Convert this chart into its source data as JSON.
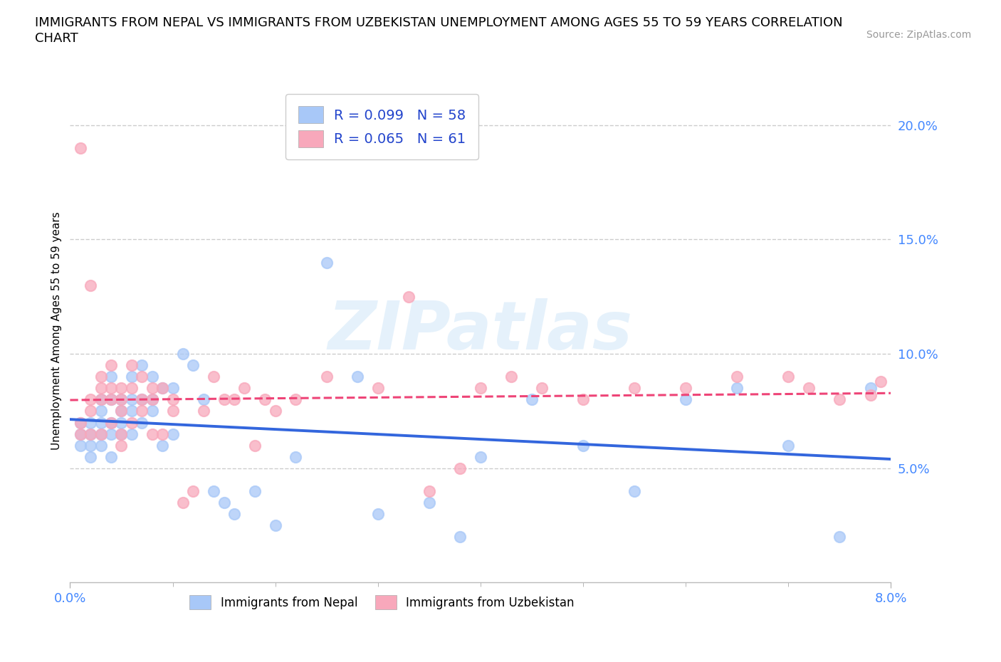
{
  "title_line1": "IMMIGRANTS FROM NEPAL VS IMMIGRANTS FROM UZBEKISTAN UNEMPLOYMENT AMONG AGES 55 TO 59 YEARS CORRELATION",
  "title_line2": "CHART",
  "source": "Source: ZipAtlas.com",
  "ylabel": "Unemployment Among Ages 55 to 59 years",
  "xlim": [
    0.0,
    0.08
  ],
  "ylim": [
    0.0,
    0.22
  ],
  "xtick_positions": [
    0.0,
    0.08
  ],
  "xticklabels": [
    "0.0%",
    "8.0%"
  ],
  "xtick_minor_positions": [
    0.01,
    0.02,
    0.03,
    0.04,
    0.05,
    0.06,
    0.07
  ],
  "yticks": [
    0.05,
    0.1,
    0.15,
    0.2
  ],
  "yticklabels": [
    "5.0%",
    "10.0%",
    "15.0%",
    "20.0%"
  ],
  "nepal_scatter_color": "#a8c8f8",
  "uzbekistan_scatter_color": "#f8a8bb",
  "nepal_line_color": "#3366dd",
  "uzbekistan_line_color": "#ee4477",
  "R_nepal": 0.099,
  "N_nepal": 58,
  "R_uzbekistan": 0.065,
  "N_uzbekistan": 61,
  "nepal_x": [
    0.001,
    0.001,
    0.001,
    0.002,
    0.002,
    0.002,
    0.002,
    0.003,
    0.003,
    0.003,
    0.003,
    0.003,
    0.004,
    0.004,
    0.004,
    0.004,
    0.004,
    0.005,
    0.005,
    0.005,
    0.005,
    0.006,
    0.006,
    0.006,
    0.006,
    0.007,
    0.007,
    0.007,
    0.008,
    0.008,
    0.008,
    0.009,
    0.009,
    0.01,
    0.01,
    0.011,
    0.012,
    0.013,
    0.014,
    0.015,
    0.016,
    0.018,
    0.02,
    0.022,
    0.025,
    0.028,
    0.03,
    0.035,
    0.038,
    0.04,
    0.045,
    0.05,
    0.055,
    0.06,
    0.065,
    0.07,
    0.075,
    0.078
  ],
  "nepal_y": [
    0.065,
    0.06,
    0.07,
    0.055,
    0.06,
    0.065,
    0.07,
    0.06,
    0.065,
    0.07,
    0.08,
    0.075,
    0.055,
    0.065,
    0.07,
    0.08,
    0.09,
    0.065,
    0.07,
    0.075,
    0.08,
    0.065,
    0.075,
    0.08,
    0.09,
    0.07,
    0.08,
    0.095,
    0.075,
    0.08,
    0.09,
    0.06,
    0.085,
    0.065,
    0.085,
    0.1,
    0.095,
    0.08,
    0.04,
    0.035,
    0.03,
    0.04,
    0.025,
    0.055,
    0.14,
    0.09,
    0.03,
    0.035,
    0.02,
    0.055,
    0.08,
    0.06,
    0.04,
    0.08,
    0.085,
    0.06,
    0.02,
    0.085
  ],
  "uzbekistan_x": [
    0.001,
    0.001,
    0.001,
    0.002,
    0.002,
    0.002,
    0.002,
    0.003,
    0.003,
    0.003,
    0.003,
    0.004,
    0.004,
    0.004,
    0.004,
    0.005,
    0.005,
    0.005,
    0.005,
    0.005,
    0.006,
    0.006,
    0.006,
    0.007,
    0.007,
    0.007,
    0.008,
    0.008,
    0.008,
    0.009,
    0.009,
    0.01,
    0.01,
    0.011,
    0.012,
    0.013,
    0.014,
    0.015,
    0.016,
    0.017,
    0.018,
    0.019,
    0.02,
    0.022,
    0.025,
    0.03,
    0.033,
    0.035,
    0.038,
    0.04,
    0.043,
    0.046,
    0.05,
    0.055,
    0.06,
    0.065,
    0.07,
    0.072,
    0.075,
    0.078,
    0.079
  ],
  "uzbekistan_y": [
    0.19,
    0.065,
    0.07,
    0.065,
    0.08,
    0.13,
    0.075,
    0.065,
    0.08,
    0.085,
    0.09,
    0.07,
    0.08,
    0.085,
    0.095,
    0.06,
    0.065,
    0.075,
    0.08,
    0.085,
    0.07,
    0.085,
    0.095,
    0.075,
    0.08,
    0.09,
    0.065,
    0.08,
    0.085,
    0.065,
    0.085,
    0.075,
    0.08,
    0.035,
    0.04,
    0.075,
    0.09,
    0.08,
    0.08,
    0.085,
    0.06,
    0.08,
    0.075,
    0.08,
    0.09,
    0.085,
    0.125,
    0.04,
    0.05,
    0.085,
    0.09,
    0.085,
    0.08,
    0.085,
    0.085,
    0.09,
    0.09,
    0.085,
    0.08,
    0.082,
    0.088
  ],
  "watermark_text": "ZIPatlas",
  "background_color": "#ffffff",
  "grid_color": "#cccccc",
  "axis_tick_color": "#4488ff",
  "legend_text_color": "#2244cc"
}
